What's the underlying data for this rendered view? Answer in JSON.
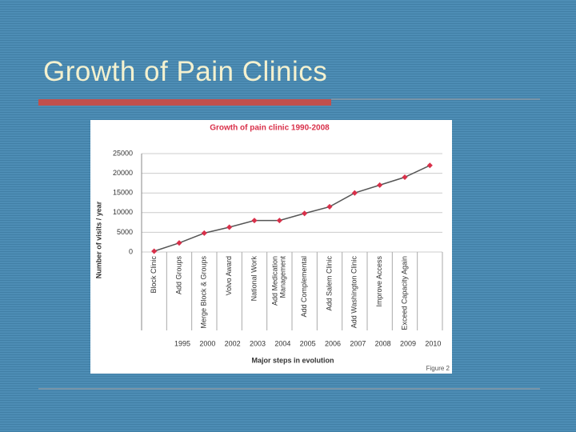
{
  "slide_title": "Growth of Pain Clinics",
  "chart_data": {
    "type": "line",
    "title": "Growth of pain clinic 1990-2008",
    "y_label": "Number of visits / year",
    "x_label": "Major steps in evolution",
    "figure_label": "Figure 2",
    "categories": [
      null,
      "1995",
      "2000",
      "2002",
      "2003",
      "2004",
      "2005",
      "2006",
      "2007",
      "2008",
      "2009",
      "2010"
    ],
    "steps": [
      "Block Clinic",
      "Add Groups",
      "Merge Block & Groups",
      "Volvo Award",
      "National Work",
      [
        "Add Medication",
        "Management"
      ],
      "Add Complemental",
      "Add Salem Clinic",
      "Add Washington Clinic",
      "Improve Access",
      "Exceed Capacity Again",
      null
    ],
    "series": [
      {
        "name": "Visits",
        "color": "#555555",
        "marker_color": "#d9304a",
        "values": [
          200,
          2300,
          4800,
          6300,
          8000,
          8000,
          9800,
          11500,
          15000,
          17000,
          19000,
          22000
        ]
      }
    ],
    "ylim": [
      0,
      25000
    ],
    "yticks": [
      0,
      5000,
      10000,
      15000,
      20000,
      25000
    ],
    "grid": true
  }
}
